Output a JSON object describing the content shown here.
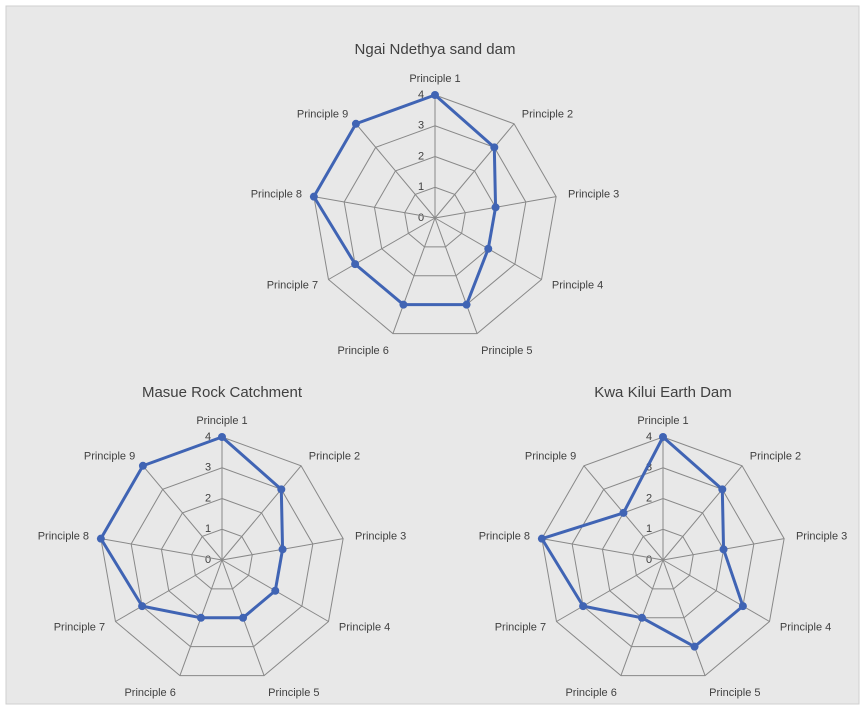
{
  "chart_data": [
    {
      "type": "radar",
      "title": "Ngai Ndethya sand dam",
      "categories": [
        "Principle 1",
        "Principle 2",
        "Principle 3",
        "Principle 4",
        "Principle 5",
        "Principle 6",
        "Principle 7",
        "Principle 8",
        "Principle 9"
      ],
      "values": [
        4,
        3,
        2,
        2,
        3,
        3,
        3,
        4,
        4
      ],
      "color": "#4064b4",
      "rlim": [
        0,
        4
      ],
      "rticks": [
        0,
        1,
        2,
        3,
        4
      ]
    },
    {
      "type": "radar",
      "title": "Masue Rock Catchment",
      "categories": [
        "Principle 1",
        "Principle 2",
        "Principle 3",
        "Principle 4",
        "Principle 5",
        "Principle 6",
        "Principle 7",
        "Principle 8",
        "Principle 9"
      ],
      "values": [
        4,
        3,
        2,
        2,
        2,
        2,
        3,
        4,
        4
      ],
      "color": "#4064b4",
      "rlim": [
        0,
        4
      ],
      "rticks": [
        0,
        1,
        2,
        3,
        4
      ]
    },
    {
      "type": "radar",
      "title": "Kwa Kilui Earth Dam",
      "categories": [
        "Principle 1",
        "Principle 2",
        "Principle 3",
        "Principle 4",
        "Principle 5",
        "Principle 6",
        "Principle 7",
        "Principle 8",
        "Principle 9"
      ],
      "values": [
        4,
        3,
        2,
        3,
        3,
        2,
        3,
        4,
        2
      ],
      "color": "#4064b4",
      "rlim": [
        0,
        4
      ],
      "rticks": [
        0,
        1,
        2,
        3,
        4
      ]
    }
  ]
}
